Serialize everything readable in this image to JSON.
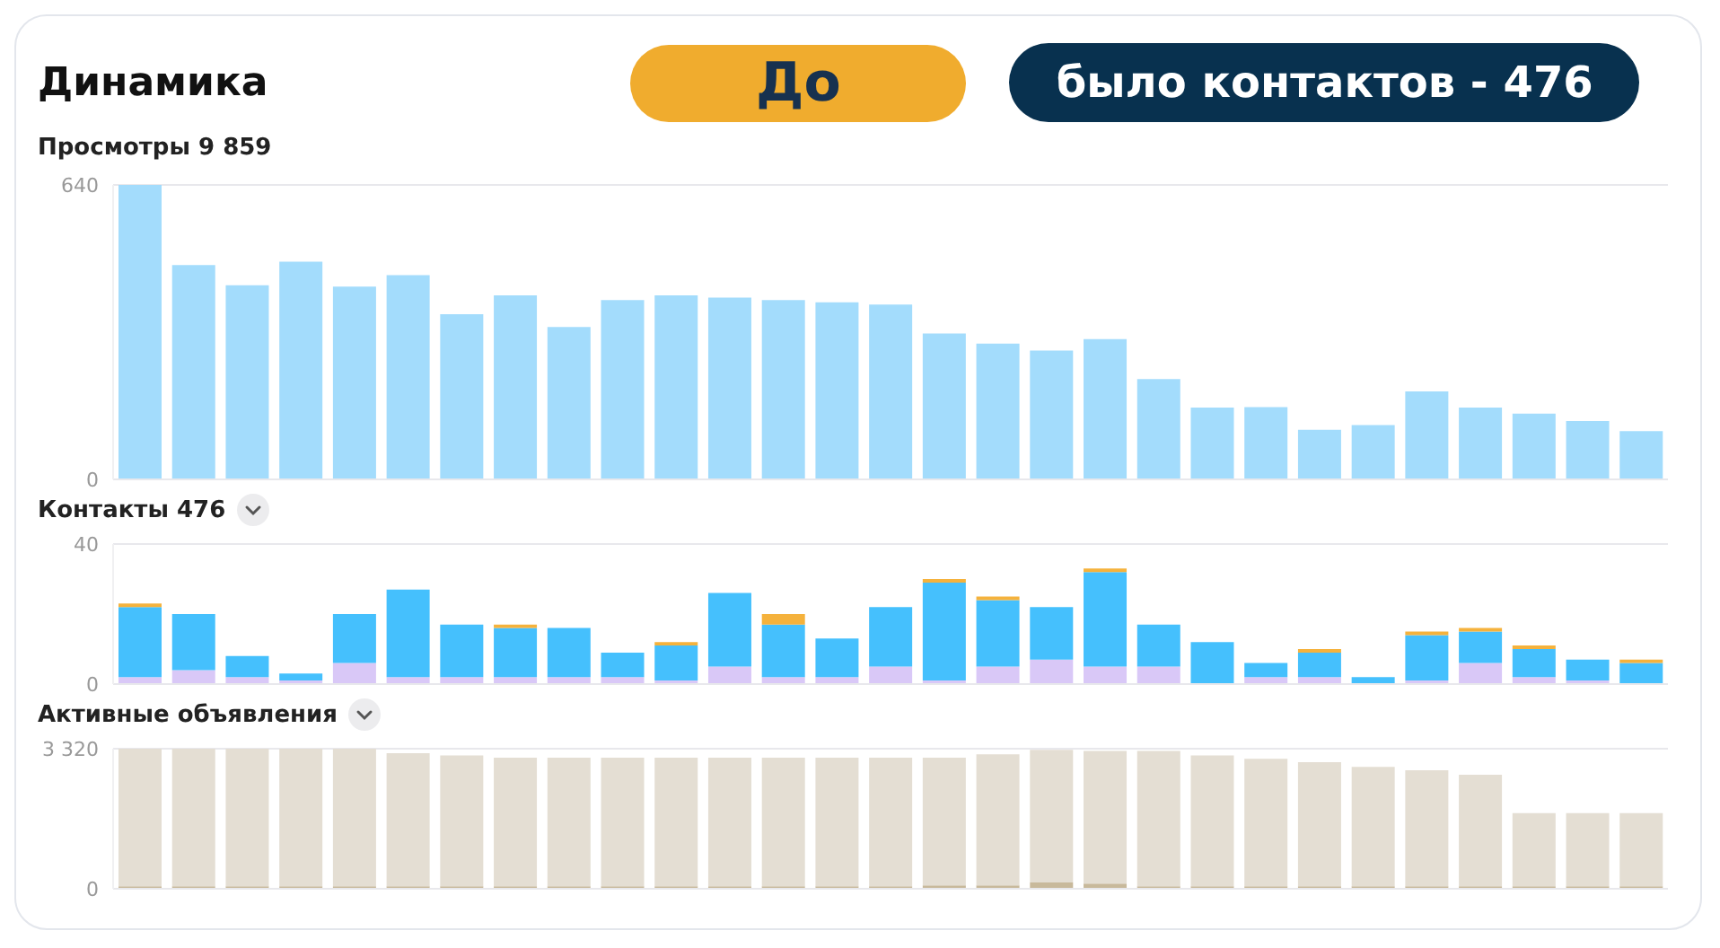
{
  "chart_data": [
    {
      "type": "bar",
      "title": "Динамика",
      "subtitle": "Просмотры 9 859",
      "annotations": [
        "До",
        "было контактов - 476"
      ],
      "categories": [
        null,
        null,
        null,
        null,
        null,
        null,
        null,
        null,
        null,
        null,
        null,
        null,
        null,
        null,
        null,
        null,
        null,
        null,
        null,
        null,
        null,
        null,
        null,
        null,
        null,
        null,
        null,
        null,
        null
      ],
      "values": [
        640,
        466,
        422,
        473,
        419,
        444,
        359,
        400,
        331,
        390,
        400,
        395,
        390,
        385,
        380,
        317,
        295,
        280,
        305,
        218,
        156,
        157,
        108,
        118,
        191,
        156,
        143,
        127,
        105
      ],
      "color": "#a3dcfc",
      "ylim": [
        0,
        640
      ],
      "yticks": [
        0,
        640
      ],
      "grid": "y"
    },
    {
      "type": "bar",
      "title": "Контакты 476",
      "categories": [
        null,
        null,
        null,
        null,
        null,
        null,
        null,
        null,
        null,
        null,
        null,
        null,
        null,
        null,
        null,
        null,
        null,
        null,
        null,
        null,
        null,
        null,
        null,
        null,
        null,
        null,
        null,
        null,
        null
      ],
      "stacked": true,
      "series": [
        {
          "color": "#d9c8f7",
          "values": [
            2,
            4,
            2,
            1,
            6,
            2,
            2,
            2,
            2,
            2,
            1,
            5,
            2,
            2,
            5,
            1,
            5,
            7,
            5,
            5,
            0,
            2,
            2,
            0,
            1,
            6,
            2,
            1,
            0
          ]
        },
        {
          "color": "#45c0fd",
          "values": [
            20,
            16,
            6,
            2,
            14,
            25,
            15,
            14,
            14,
            7,
            10,
            21,
            15,
            11,
            17,
            28,
            19,
            15,
            27,
            12,
            12,
            4,
            7,
            2,
            13,
            9,
            8,
            6,
            6
          ]
        },
        {
          "color": "#f5b23c",
          "values": [
            1,
            0,
            0,
            0,
            0,
            0,
            0,
            1,
            0,
            0,
            1,
            0,
            3,
            0,
            0,
            1,
            1,
            0,
            1,
            0,
            0,
            0,
            1,
            0,
            1,
            1,
            1,
            0,
            1
          ]
        }
      ],
      "ylim": [
        0,
        40
      ],
      "yticks": [
        0,
        40
      ],
      "grid": "y"
    },
    {
      "type": "bar",
      "title": "Активные объявления",
      "categories": [
        null,
        null,
        null,
        null,
        null,
        null,
        null,
        null,
        null,
        null,
        null,
        null,
        null,
        null,
        null,
        null,
        null,
        null,
        null,
        null,
        null,
        null,
        null,
        null,
        null,
        null,
        null,
        null,
        null
      ],
      "stacked": true,
      "series": [
        {
          "color": "#c8b99b",
          "values": [
            60,
            60,
            60,
            60,
            60,
            60,
            60,
            60,
            60,
            60,
            60,
            60,
            60,
            60,
            60,
            80,
            80,
            150,
            120,
            60,
            60,
            60,
            60,
            60,
            60,
            60,
            60,
            60,
            60
          ]
        },
        {
          "color": "#e4ded3",
          "values": [
            3260,
            3260,
            3260,
            3260,
            3260,
            3153,
            3100,
            3046,
            3046,
            3046,
            3046,
            3046,
            3046,
            3046,
            3046,
            3026,
            3106,
            3143,
            3146,
            3206,
            3100,
            3019,
            2940,
            2830,
            2750,
            2644,
            1734,
            1734,
            1734
          ]
        }
      ],
      "ylim": [
        0,
        3320
      ],
      "yticks": [
        0,
        {
          "value": 3320,
          "label": "3 320"
        }
      ],
      "grid": "y"
    }
  ]
}
